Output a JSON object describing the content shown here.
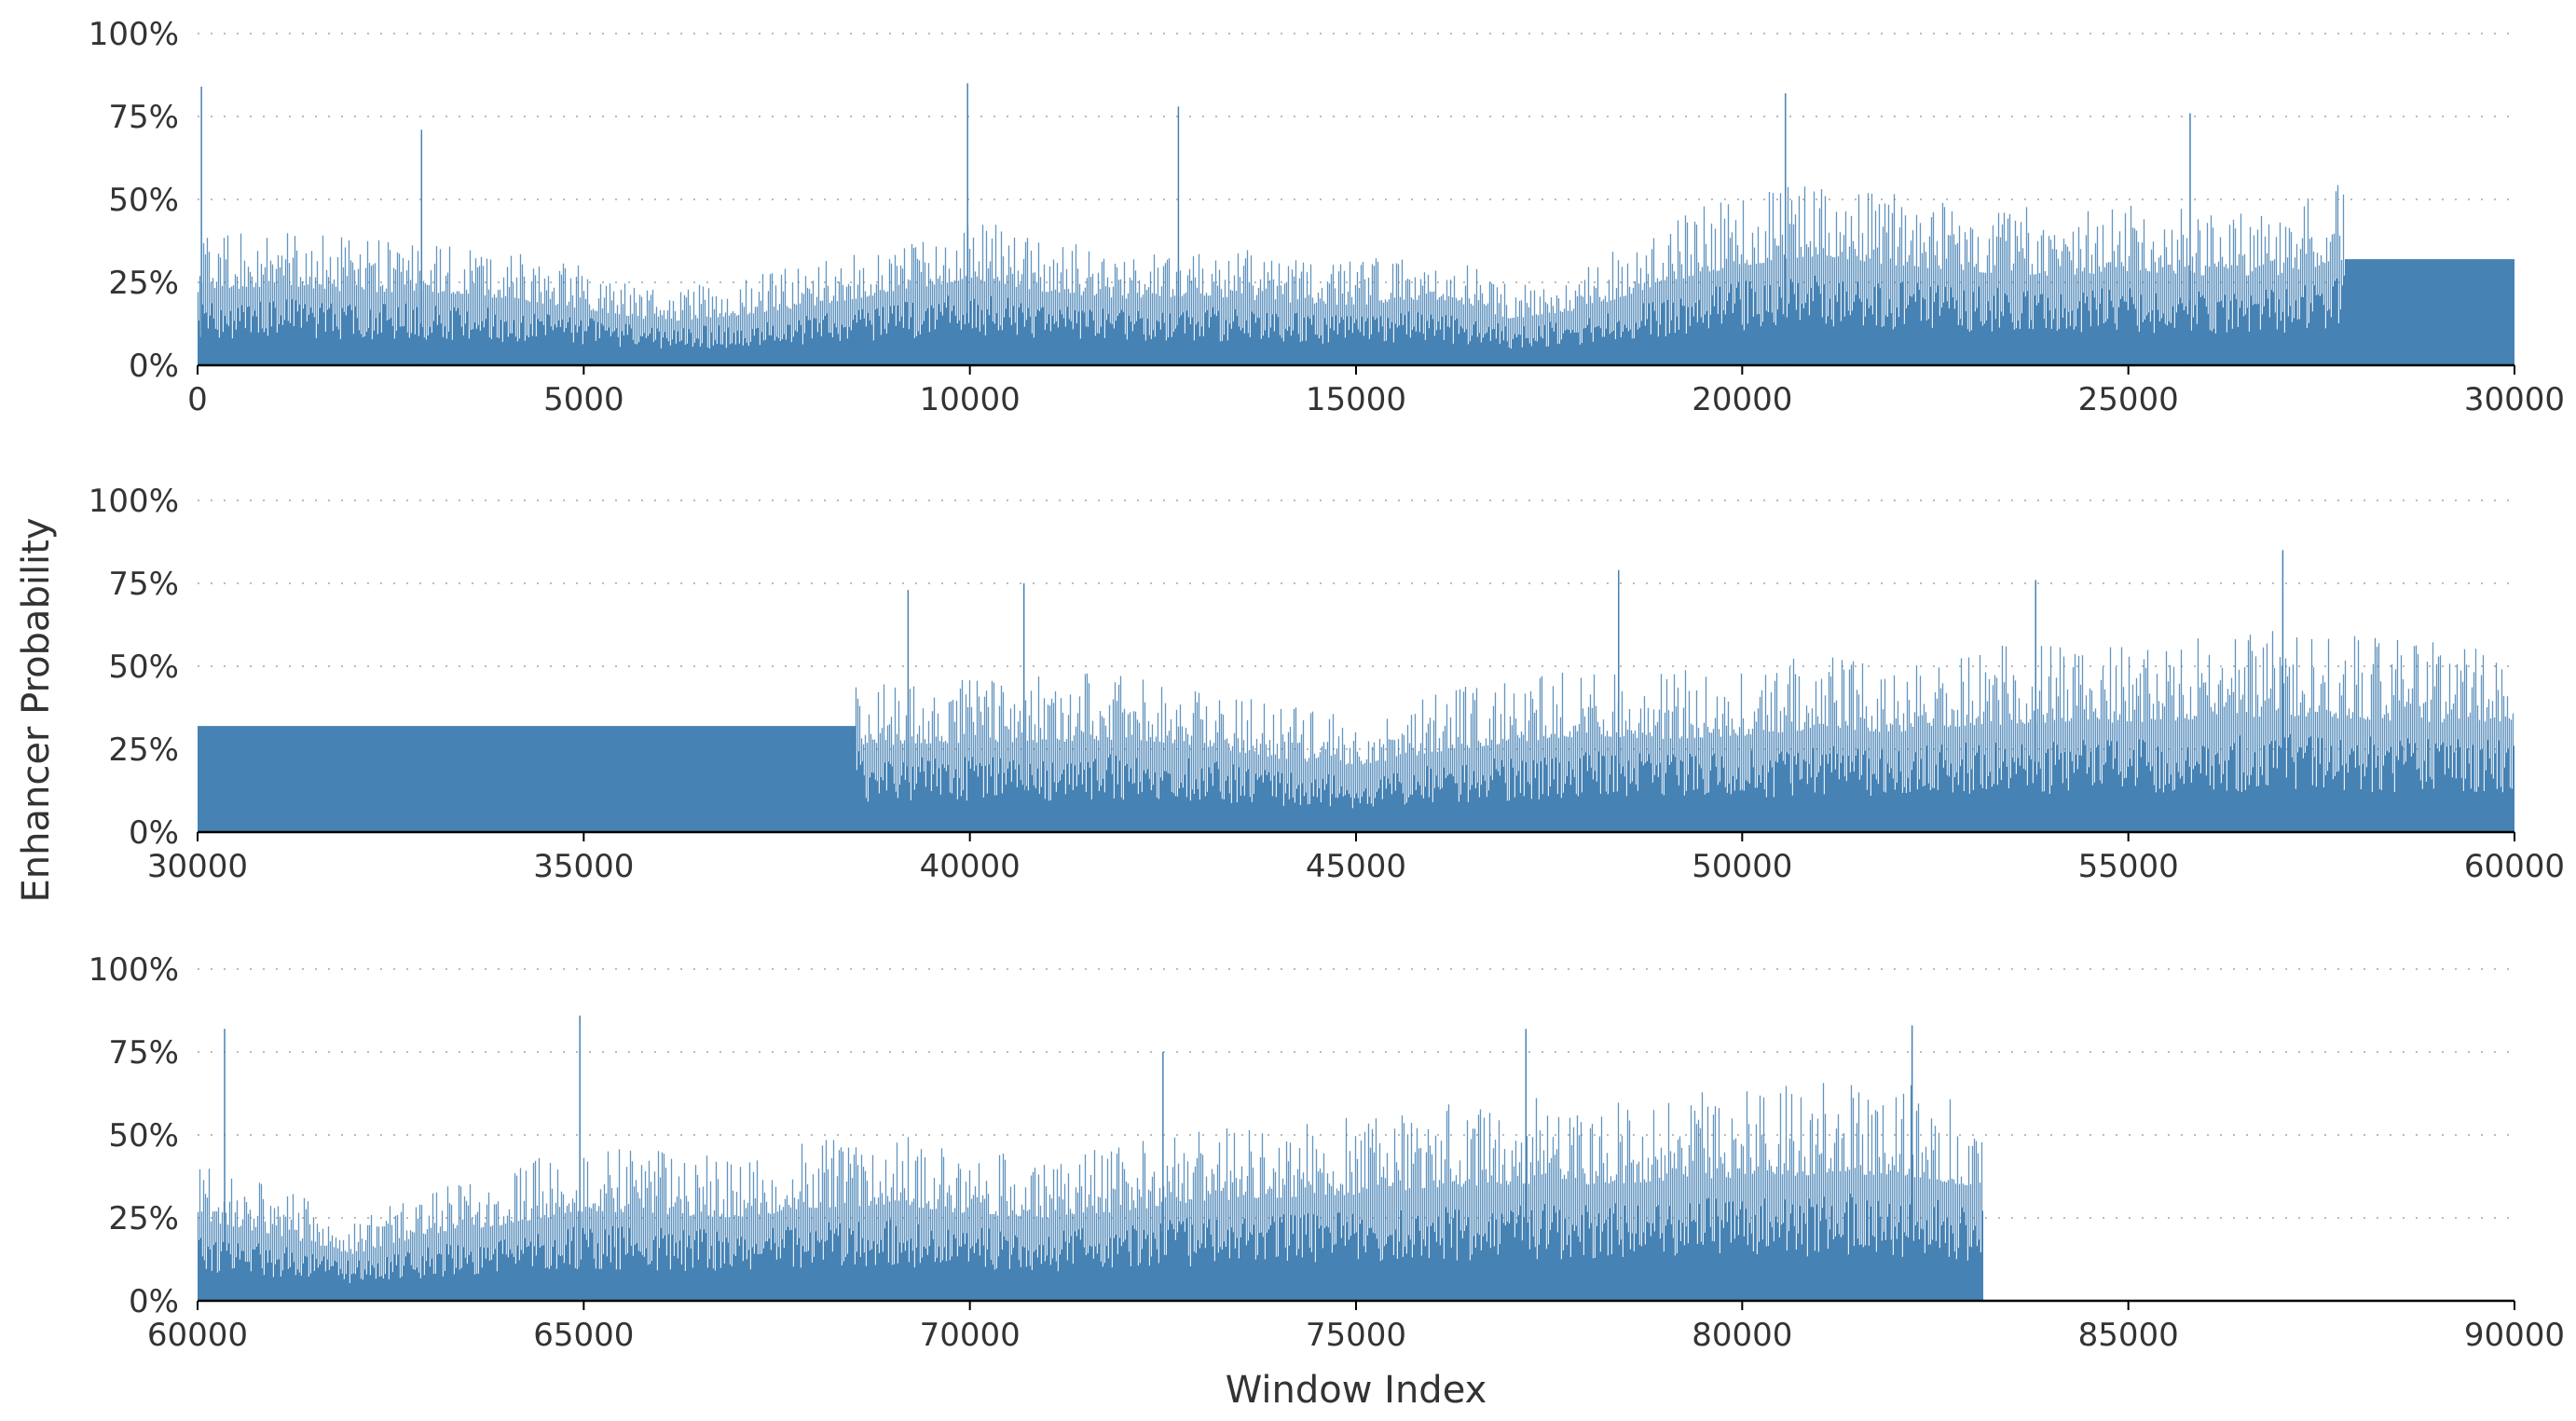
{
  "chart_data": {
    "type": "bar",
    "ylabel": "Enhancer Probability",
    "xlabel": "Window Index",
    "color": "#4682b4",
    "y_ticks": [
      "0%",
      "25%",
      "50%",
      "75%",
      "100%"
    ],
    "ylim": [
      0,
      1
    ],
    "grid": "horizontal dotted",
    "panels": [
      {
        "xlim": [
          0,
          30000
        ],
        "x_ticks": [
          "0",
          "5000",
          "10000",
          "15000",
          "20000",
          "25000",
          "30000"
        ],
        "series": [
          {
            "segments": [
              [
                0,
                0.22
              ],
              [
                1000,
                0.24
              ],
              [
                2000,
                0.22
              ],
              [
                3000,
                0.22
              ],
              [
                4000,
                0.2
              ],
              [
                5000,
                0.17
              ],
              [
                6000,
                0.13
              ],
              [
                7000,
                0.15
              ],
              [
                8000,
                0.18
              ],
              [
                9000,
                0.22
              ],
              [
                10000,
                0.26
              ],
              [
                11000,
                0.22
              ],
              [
                12000,
                0.2
              ],
              [
                13000,
                0.21
              ],
              [
                14000,
                0.19
              ],
              [
                15000,
                0.18
              ],
              [
                16000,
                0.2
              ],
              [
                17000,
                0.14
              ],
              [
                18000,
                0.17
              ],
              [
                19000,
                0.25
              ],
              [
                20000,
                0.3
              ],
              [
                21000,
                0.33
              ],
              [
                22000,
                0.3
              ],
              [
                23000,
                0.28
              ],
              [
                24000,
                0.27
              ],
              [
                25000,
                0.28
              ],
              [
                26000,
                0.27
              ],
              [
                27000,
                0.27
              ],
              [
                27800,
                0.32
              ],
              [
                30000,
                0.32
              ]
            ],
            "peaks": [
              [
                50,
                0.84
              ],
              [
                9970,
                0.85
              ],
              [
                12700,
                0.78
              ],
              [
                20560,
                0.82
              ],
              [
                25800,
                0.76
              ],
              [
                2900,
                0.71
              ]
            ]
          }
        ]
      },
      {
        "xlim": [
          30000,
          60000
        ],
        "x_ticks": [
          "30000",
          "35000",
          "40000",
          "45000",
          "50000",
          "55000",
          "60000"
        ],
        "series": [
          {
            "segments": [
              [
                30000,
                0.32
              ],
              [
                38500,
                0.32
              ],
              [
                38600,
                0.26
              ],
              [
                40000,
                0.27
              ],
              [
                41000,
                0.27
              ],
              [
                42000,
                0.28
              ],
              [
                43000,
                0.26
              ],
              [
                44000,
                0.22
              ],
              [
                45000,
                0.2
              ],
              [
                46000,
                0.24
              ],
              [
                47000,
                0.27
              ],
              [
                48000,
                0.29
              ],
              [
                49000,
                0.28
              ],
              [
                50000,
                0.29
              ],
              [
                51000,
                0.31
              ],
              [
                52000,
                0.3
              ],
              [
                53000,
                0.32
              ],
              [
                54000,
                0.33
              ],
              [
                55000,
                0.33
              ],
              [
                56000,
                0.34
              ],
              [
                57000,
                0.35
              ],
              [
                58000,
                0.34
              ],
              [
                59000,
                0.33
              ],
              [
                60000,
                0.33
              ]
            ],
            "peaks": [
              [
                48400,
                0.79
              ],
              [
                57000,
                0.85
              ],
              [
                40700,
                0.75
              ],
              [
                53800,
                0.76
              ],
              [
                39200,
                0.73
              ]
            ]
          }
        ]
      },
      {
        "xlim": [
          60000,
          90000
        ],
        "x_ticks": [
          "60000",
          "65000",
          "70000",
          "75000",
          "80000",
          "85000",
          "90000"
        ],
        "series": [
          {
            "segments": [
              [
                60000,
                0.24
              ],
              [
                61000,
                0.2
              ],
              [
                62000,
                0.14
              ],
              [
                63000,
                0.2
              ],
              [
                64000,
                0.23
              ],
              [
                65000,
                0.27
              ],
              [
                66000,
                0.26
              ],
              [
                67000,
                0.25
              ],
              [
                68000,
                0.28
              ],
              [
                69000,
                0.29
              ],
              [
                70000,
                0.26
              ],
              [
                71000,
                0.25
              ],
              [
                72000,
                0.27
              ],
              [
                73000,
                0.3
              ],
              [
                74000,
                0.31
              ],
              [
                75000,
                0.32
              ],
              [
                76000,
                0.34
              ],
              [
                77000,
                0.35
              ],
              [
                78000,
                0.35
              ],
              [
                79000,
                0.36
              ],
              [
                80000,
                0.37
              ],
              [
                81000,
                0.38
              ],
              [
                82000,
                0.38
              ],
              [
                83100,
                0.34
              ],
              [
                83100,
                0
              ]
            ],
            "peaks": [
              [
                64950,
                0.86
              ],
              [
                60350,
                0.82
              ],
              [
                77200,
                0.82
              ],
              [
                82200,
                0.83
              ],
              [
                72500,
                0.75
              ]
            ]
          }
        ]
      }
    ]
  }
}
